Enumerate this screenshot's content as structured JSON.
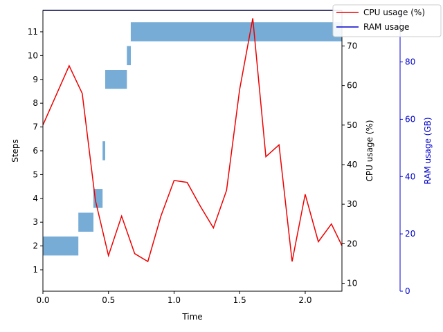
{
  "chart_data": {
    "type": "combined-gantt-line",
    "xlabel": "Time",
    "x_ticks": [
      "0.0",
      "0.5",
      "1.0",
      "1.5",
      "2.0"
    ],
    "xlim": [
      0,
      2.28
    ],
    "steps_axis": {
      "label": "Steps",
      "ticks": [
        "1",
        "2",
        "3",
        "4",
        "5",
        "6",
        "7",
        "8",
        "9",
        "10",
        "11"
      ],
      "ylim": [
        0.1,
        11.9
      ]
    },
    "cpu_axis": {
      "label": "CPU usage (%)",
      "ticks": [
        "10",
        "20",
        "30",
        "40",
        "50",
        "60",
        "70"
      ],
      "ylim": [
        8,
        79
      ]
    },
    "ram_axis": {
      "label": "RAM usage (GB)",
      "ticks": [
        "0",
        "20",
        "40",
        "60",
        "80"
      ],
      "ylim": [
        0,
        98
      ],
      "color": "#0000cc"
    },
    "step_bars": [
      {
        "step": 2,
        "start": 0.0,
        "end": 0.27
      },
      {
        "step": 3,
        "start": 0.27,
        "end": 0.385
      },
      {
        "step": 4,
        "start": 0.385,
        "end": 0.455
      },
      {
        "step": 6,
        "start": 0.455,
        "end": 0.475
      },
      {
        "step": 9,
        "start": 0.475,
        "end": 0.64
      },
      {
        "step": 10,
        "start": 0.64,
        "end": 0.67
      },
      {
        "step": 11,
        "start": 0.67,
        "end": 2.28
      }
    ],
    "bar_color": "#76acd6",
    "series": [
      {
        "name": "CPU usage (%)",
        "color": "#ee0000",
        "x": [
          0.0,
          0.2,
          0.3,
          0.4,
          0.5,
          0.6,
          0.7,
          0.8,
          0.9,
          1.0,
          1.1,
          1.2,
          1.3,
          1.4,
          1.5,
          1.6,
          1.7,
          1.8,
          1.9,
          2.0,
          2.1,
          2.2,
          2.28
        ],
        "y": [
          50,
          65,
          58,
          31,
          17,
          27,
          17.5,
          15.5,
          27,
          36,
          35.5,
          29.5,
          24,
          33.5,
          59,
          77,
          42,
          45,
          15.5,
          32.5,
          20.5,
          25,
          19.5
        ]
      },
      {
        "name": "RAM usage",
        "color": "#0000cc",
        "x": [
          0.0,
          2.28
        ],
        "y": [
          98,
          98
        ]
      }
    ],
    "legend": {
      "placement": "top-right",
      "entries": [
        "CPU usage (%)",
        "RAM usage"
      ]
    },
    "grid": false
  }
}
